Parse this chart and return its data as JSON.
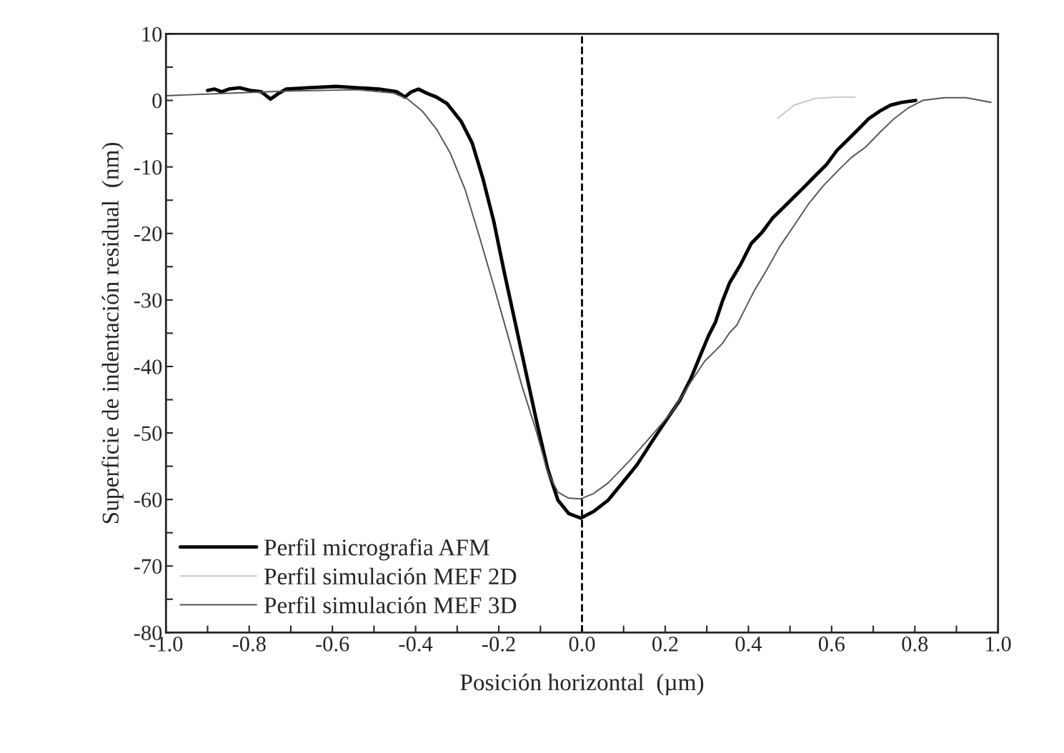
{
  "chart_data": {
    "type": "line",
    "xlabel": "Posición horizontal  (µm)",
    "ylabel": "Superficie de indentación residual  (nm)",
    "xlim": [
      -1.0,
      1.0
    ],
    "ylim": [
      -80,
      10
    ],
    "xticks": [
      {
        "value": -1.0,
        "label": "-1.0"
      },
      {
        "value": -0.9,
        "label": null
      },
      {
        "value": -0.8,
        "label": "-0.8"
      },
      {
        "value": -0.7,
        "label": null
      },
      {
        "value": -0.6,
        "label": "-0.6"
      },
      {
        "value": -0.5,
        "label": null
      },
      {
        "value": -0.4,
        "label": "-0.4"
      },
      {
        "value": -0.3,
        "label": null
      },
      {
        "value": -0.2,
        "label": "-0.2"
      },
      {
        "value": -0.1,
        "label": null
      },
      {
        "value": 0.0,
        "label": "0.0"
      },
      {
        "value": 0.1,
        "label": null
      },
      {
        "value": 0.2,
        "label": "0.2"
      },
      {
        "value": 0.3,
        "label": null
      },
      {
        "value": 0.4,
        "label": "0.4"
      },
      {
        "value": 0.5,
        "label": null
      },
      {
        "value": 0.6,
        "label": "0.6"
      },
      {
        "value": 0.7,
        "label": null
      },
      {
        "value": 0.8,
        "label": "0.8"
      },
      {
        "value": 0.9,
        "label": null
      },
      {
        "value": 1.0,
        "label": "1.0"
      }
    ],
    "yticks": [
      -80,
      {
        "value": -75,
        "label": null
      },
      -70,
      {
        "value": -65,
        "label": null
      },
      -60,
      {
        "value": -55,
        "label": null
      },
      -50,
      {
        "value": -45,
        "label": null
      },
      -40,
      {
        "value": -35,
        "label": null
      },
      -30,
      {
        "value": -25,
        "label": null
      },
      -20,
      {
        "value": -15,
        "label": null
      },
      -10,
      {
        "value": -5,
        "label": null
      },
      0,
      {
        "value": 5,
        "label": null
      },
      10
    ],
    "grid": false,
    "legend": "bottom left",
    "line_style": "solid",
    "marker": "none",
    "ref_lines": [
      {
        "axis": "x",
        "value": 0.0,
        "line_style": "dashed",
        "color": "#000000"
      }
    ],
    "series": [
      {
        "name": "Perfil micrografia AFM",
        "color": "#000000",
        "x": [
          -0.9,
          -0.883,
          -0.866,
          -0.849,
          -0.823,
          -0.797,
          -0.771,
          -0.749,
          -0.728,
          -0.711,
          -0.66,
          -0.591,
          -0.539,
          -0.488,
          -0.445,
          -0.426,
          -0.41,
          -0.393,
          -0.374,
          -0.35,
          -0.324,
          -0.29,
          -0.264,
          -0.238,
          -0.212,
          -0.187,
          -0.161,
          -0.135,
          -0.109,
          -0.083,
          -0.058,
          -0.032,
          -0.003,
          0.028,
          0.063,
          0.097,
          0.132,
          0.166,
          0.2,
          0.235,
          0.261,
          0.286,
          0.304,
          0.321,
          0.338,
          0.355,
          0.381,
          0.407,
          0.432,
          0.458,
          0.484,
          0.51,
          0.536,
          0.561,
          0.587,
          0.613,
          0.639,
          0.665,
          0.69,
          0.716,
          0.742,
          0.768,
          0.802
        ],
        "values": [
          1.5,
          1.7,
          1.3,
          1.7,
          1.9,
          1.5,
          1.3,
          0.2,
          1.1,
          1.7,
          1.9,
          2.1,
          1.9,
          1.7,
          1.3,
          0.5,
          1.3,
          1.7,
          1.1,
          0.5,
          -0.5,
          -3.2,
          -6.4,
          -11.8,
          -18.2,
          -25.8,
          -33.3,
          -40.8,
          -48.3,
          -55.3,
          -60.1,
          -62.1,
          -62.8,
          -61.8,
          -60.1,
          -57.5,
          -54.8,
          -51.5,
          -48.3,
          -45.1,
          -41.9,
          -38.1,
          -35.4,
          -33.3,
          -30.1,
          -27.4,
          -24.7,
          -21.5,
          -19.9,
          -17.7,
          -16.1,
          -14.5,
          -12.9,
          -11.3,
          -9.7,
          -7.5,
          -5.9,
          -4.3,
          -2.7,
          -1.6,
          -0.7,
          -0.3,
          0.0
        ]
      },
      {
        "name": "Perfil simulación MEF 2D",
        "color": "#c8c8c8",
        "x": [
          0.47,
          0.51,
          0.561,
          0.613,
          0.656
        ],
        "values": [
          -2.7,
          -0.7,
          0.3,
          0.5,
          0.5
        ]
      },
      {
        "name": "Perfil simulación MEF 3D",
        "color": "#555555",
        "x": [
          -1.0,
          -0.883,
          -0.711,
          -0.539,
          -0.453,
          -0.419,
          -0.384,
          -0.35,
          -0.316,
          -0.281,
          -0.247,
          -0.212,
          -0.178,
          -0.144,
          -0.109,
          -0.083,
          -0.058,
          -0.032,
          -0.003,
          0.028,
          0.063,
          0.114,
          0.166,
          0.218,
          0.261,
          0.295,
          0.321,
          0.338,
          0.355,
          0.372,
          0.389,
          0.415,
          0.441,
          0.475,
          0.51,
          0.544,
          0.579,
          0.613,
          0.647,
          0.682,
          0.716,
          0.751,
          0.785,
          0.819,
          0.871,
          0.923,
          0.983
        ],
        "values": [
          0.7,
          1.0,
          1.4,
          1.6,
          1.1,
          0.2,
          -1.6,
          -4.3,
          -8.0,
          -13.4,
          -20.4,
          -27.9,
          -35.4,
          -43.0,
          -49.9,
          -55.8,
          -58.9,
          -59.8,
          -59.9,
          -59.1,
          -57.5,
          -54.2,
          -50.5,
          -46.7,
          -42.4,
          -39.2,
          -37.6,
          -36.5,
          -34.9,
          -33.8,
          -31.7,
          -28.5,
          -25.8,
          -22.0,
          -18.8,
          -15.6,
          -12.9,
          -10.7,
          -8.6,
          -7.0,
          -4.8,
          -2.7,
          -1.1,
          0.0,
          0.4,
          0.4,
          -0.3
        ]
      }
    ]
  }
}
